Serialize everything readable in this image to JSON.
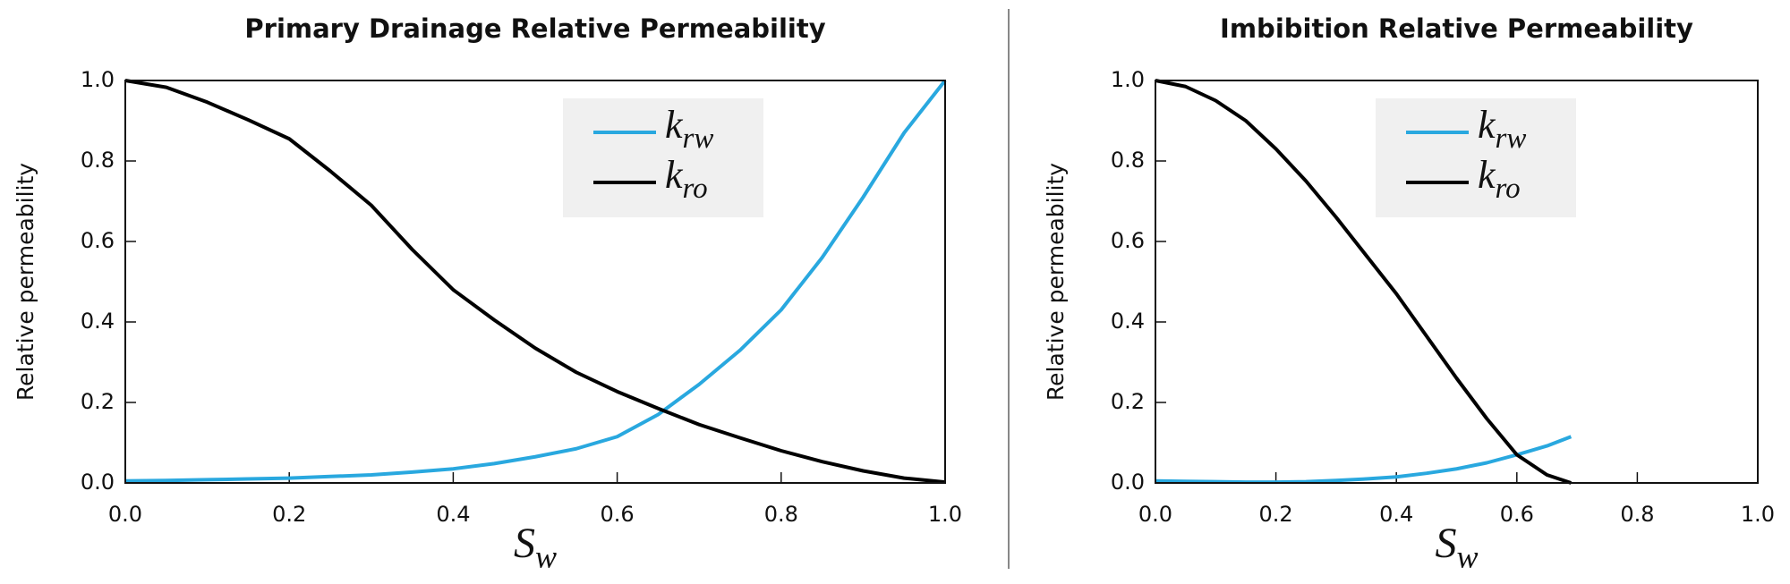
{
  "chart_data": [
    {
      "type": "line",
      "title": "Primary Drainage Relative Permeability",
      "xlabel": "Sw",
      "ylabel": "Relative permeability",
      "x": [
        0,
        0.05,
        0.1,
        0.15,
        0.2,
        0.25,
        0.3,
        0.35,
        0.4,
        0.45,
        0.5,
        0.55,
        0.6,
        0.65,
        0.7,
        0.75,
        0.8,
        0.85,
        0.9,
        0.95,
        1.0
      ],
      "series": [
        {
          "name": "krw",
          "color": "#29a8df",
          "values": [
            0.005,
            0.006,
            0.008,
            0.01,
            0.012,
            0.016,
            0.02,
            0.027,
            0.035,
            0.048,
            0.065,
            0.085,
            0.115,
            0.17,
            0.245,
            0.33,
            0.43,
            0.56,
            0.71,
            0.87,
            1.0
          ]
        },
        {
          "name": "kro",
          "color": "#000000",
          "values": [
            1.0,
            0.983,
            0.946,
            0.902,
            0.855,
            0.775,
            0.69,
            0.58,
            0.48,
            0.405,
            0.335,
            0.275,
            0.227,
            0.185,
            0.145,
            0.112,
            0.08,
            0.053,
            0.03,
            0.012,
            0.002
          ]
        }
      ],
      "xlim": [
        0,
        1.0
      ],
      "xticks": [
        {
          "value": 0,
          "label": "0.0"
        },
        0.2,
        0.4,
        0.6,
        0.8,
        {
          "value": 1,
          "label": "1.0"
        }
      ],
      "ylim": [
        0,
        1.0
      ],
      "yticks": [
        {
          "value": 0,
          "label": "0.0"
        },
        0.2,
        0.4,
        0.6,
        0.8,
        {
          "value": 1,
          "label": "1.0"
        }
      ],
      "legend": "upper right"
    },
    {
      "type": "line",
      "title": "Imbibition Relative Permeability",
      "xlabel": "Sw",
      "ylabel": "Relative permeability",
      "x": [
        0,
        0.05,
        0.1,
        0.15,
        0.2,
        0.25,
        0.3,
        0.35,
        0.4,
        0.45,
        0.5,
        0.55,
        0.6,
        0.65,
        0.69
      ],
      "series": [
        {
          "name": "krw",
          "color": "#29a8df",
          "values": [
            0.005,
            0.004,
            0.003,
            0.002,
            0.002,
            0.003,
            0.006,
            0.01,
            0.015,
            0.024,
            0.035,
            0.05,
            0.07,
            0.092,
            0.115
          ]
        },
        {
          "name": "kro",
          "color": "#000000",
          "values": [
            1.0,
            0.985,
            0.95,
            0.9,
            0.83,
            0.75,
            0.66,
            0.565,
            0.47,
            0.365,
            0.26,
            0.16,
            0.07,
            0.02,
            0.0
          ]
        }
      ],
      "xlim": [
        0,
        1.0
      ],
      "xticks": [
        {
          "value": 0,
          "label": "0.0"
        },
        0.2,
        0.4,
        0.6,
        0.8,
        {
          "value": 1,
          "label": "1.0"
        }
      ],
      "ylim": [
        0,
        1.0
      ],
      "yticks": [
        {
          "value": 0,
          "label": "0.0"
        },
        0.2,
        0.4,
        0.6,
        0.8,
        {
          "value": 1,
          "label": "1.0"
        }
      ],
      "legend": "upper right"
    }
  ]
}
